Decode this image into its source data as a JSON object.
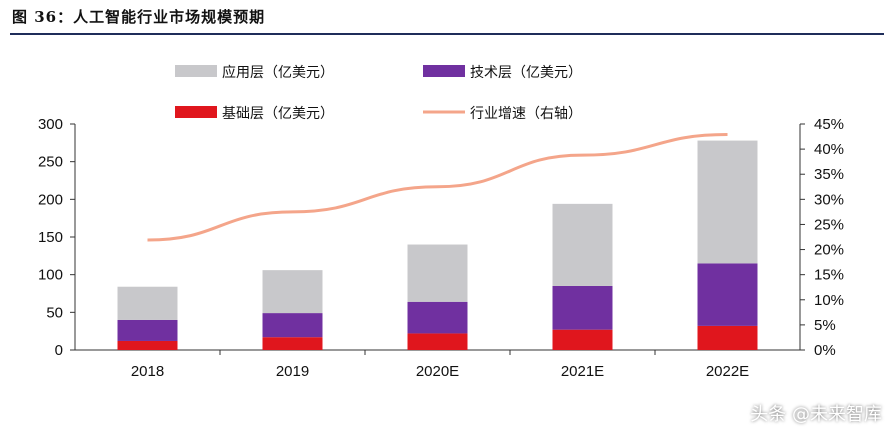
{
  "figure": {
    "title": "图 36：人工智能行业市场规模预期"
  },
  "watermark": "头条 @未来智库",
  "colors": {
    "application": "#c8c8cb",
    "technology": "#7030a0",
    "base": "#e0161d",
    "growth": "#f4a58a",
    "rule": "#1f2d5a"
  },
  "chart_data": {
    "type": "bar",
    "stacked": true,
    "categories": [
      "2018",
      "2019",
      "2020E",
      "2021E",
      "2022E"
    ],
    "series": [
      {
        "name": "基础层（亿美元）",
        "key": "base",
        "values": [
          12,
          17,
          22,
          27,
          32
        ]
      },
      {
        "name": "技术层（亿美元）",
        "key": "technology",
        "values": [
          28,
          32,
          42,
          58,
          83
        ]
      },
      {
        "name": "应用层（亿美元）",
        "key": "application",
        "values": [
          44,
          57,
          76,
          109,
          163
        ]
      }
    ],
    "line_series": {
      "name": "行业增速（右轴）",
      "axis": "right",
      "values": [
        21.9,
        27.5,
        32.5,
        38.8,
        42.9
      ]
    },
    "ylim": [
      0,
      300
    ],
    "yticks": [
      "0",
      "50",
      "100",
      "150",
      "200",
      "250",
      "300"
    ],
    "y2lim": [
      0,
      45
    ],
    "y2ticks": [
      "0%",
      "5%",
      "10%",
      "15%",
      "20%",
      "25%",
      "30%",
      "35%",
      "40%",
      "45%"
    ],
    "legend_position": "top",
    "grid": false
  }
}
